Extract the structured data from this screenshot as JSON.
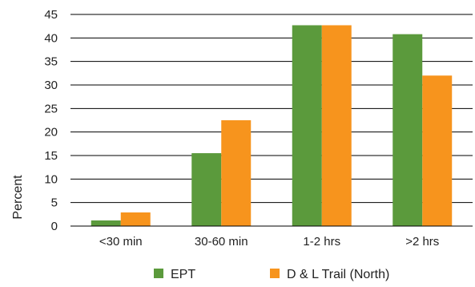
{
  "chart_data": {
    "type": "bar",
    "categories": [
      "<30 min",
      "30-60 min",
      "1-2 hrs",
      ">2 hrs"
    ],
    "series": [
      {
        "name": "EPT",
        "values": [
          1.2,
          15.5,
          42.7,
          40.8
        ],
        "color": "#5b9a3c"
      },
      {
        "name": "D & L Trail (North)",
        "values": [
          2.9,
          22.5,
          42.7,
          32.0
        ],
        "color": "#f7941d"
      }
    ],
    "ylabel": "Percent",
    "xlabel": "",
    "ylim": [
      0,
      45
    ],
    "yticks": [
      0,
      5,
      10,
      15,
      20,
      25,
      30,
      35,
      40,
      45
    ],
    "grid": true,
    "legend_position": "bottom"
  }
}
